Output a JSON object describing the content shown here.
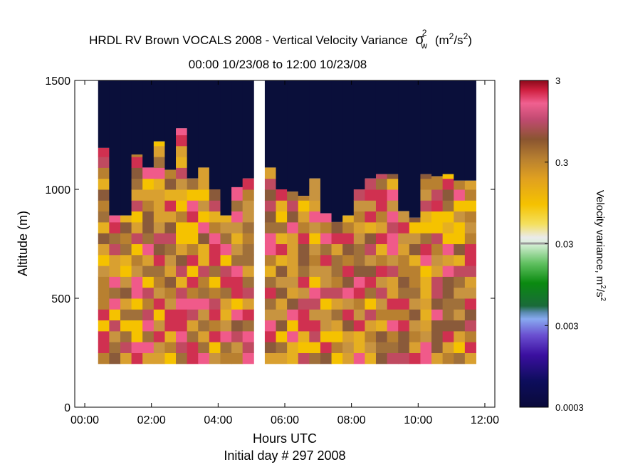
{
  "chart_data": {
    "type": "heatmap",
    "title_main": "HRDL RV Brown VOCALS 2008 - Vertical Velocity Variance",
    "title_symbol": "σ",
    "title_sup": "2",
    "title_sub": "w",
    "title_unit": "(m",
    "title_unit_sup1": "2",
    "title_unit_mid": "/s",
    "title_unit_sup2": "2",
    "title_unit_end": ")",
    "subtitle": "00:00 10/23/08 to 12:00 10/23/08",
    "xlabel": "Hours UTC",
    "xlabel2": "Initial day # 297  2008",
    "ylabel": "Altitude (m)",
    "xlim": [
      -0.3,
      12.3
    ],
    "ylim": [
      0,
      1500
    ],
    "xticks": [
      0,
      2,
      4,
      6,
      8,
      10,
      12
    ],
    "xtick_labels": [
      "00:00",
      "02:00",
      "04:00",
      "06:00",
      "08:00",
      "10:00",
      "12:00"
    ],
    "yticks": [
      0,
      500,
      1000,
      1500
    ],
    "ytick_labels": [
      "0",
      "500",
      "1000",
      "1500"
    ],
    "colorbar": {
      "label": "Velocity variance, m",
      "label_sup1": "2",
      "label_mid": "/s",
      "label_sup2": "2",
      "scale": "log",
      "range": [
        0.0003,
        3
      ],
      "ticks": [
        0.0003,
        0.003,
        0.03,
        0.3,
        3
      ],
      "tick_labels": [
        "0.0003",
        "0.003",
        "0.03",
        "0.3",
        "3"
      ]
    },
    "grid": false,
    "data_bottom_m": 200,
    "data_top_m": 1500,
    "gap_hours": [
      5.1,
      5.4
    ],
    "time_bins_start": [
      0.4,
      0.733,
      1.067,
      1.4,
      1.733,
      2.067,
      2.4,
      2.733,
      3.067,
      3.4,
      3.733,
      4.067,
      4.4,
      4.733,
      5.4,
      5.733,
      6.067,
      6.4,
      6.733,
      7.067,
      7.4,
      7.733,
      8.067,
      8.4,
      8.733,
      9.067,
      9.4,
      9.733,
      10.067,
      10.4,
      10.733,
      11.067,
      11.4
    ],
    "bin_width_hours": 0.333,
    "mixed_layer_top_m": [
      1190,
      880,
      880,
      1160,
      1100,
      1220,
      1090,
      1280,
      1050,
      1100,
      1000,
      880,
      1010,
      1050,
      1100,
      1000,
      990,
      970,
      1050,
      890,
      850,
      880,
      1000,
      1050,
      1070,
      1070,
      900,
      870,
      1070,
      1060,
      1070,
      1040,
      1040
    ]
  }
}
